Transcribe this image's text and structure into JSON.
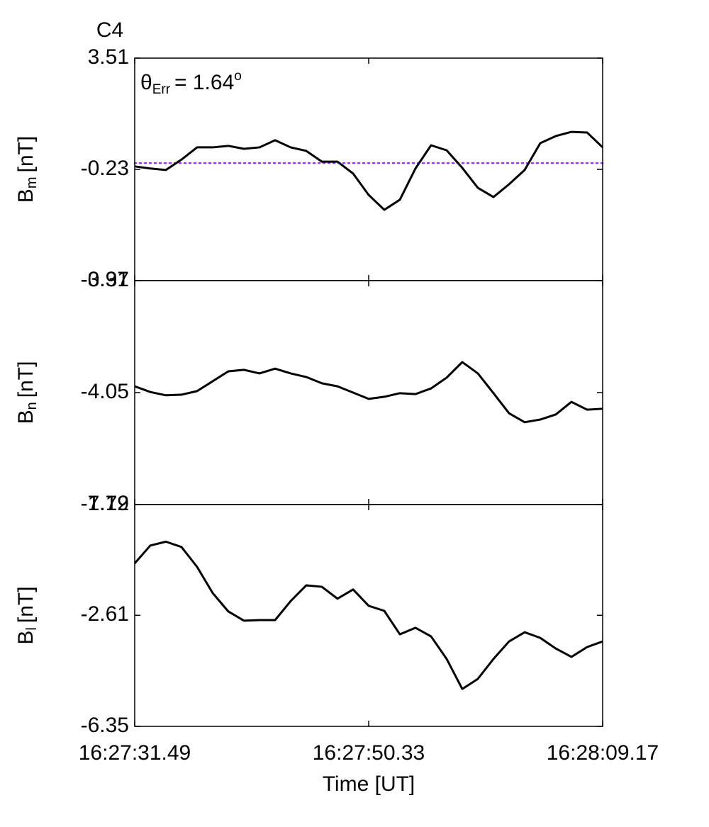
{
  "chart_data": [
    {
      "type": "line",
      "title": "C4",
      "title_color": "#ff0000",
      "annotation": {
        "text": "θ",
        "sub": "Err",
        "rest": "=  1.64",
        "sup": "o"
      },
      "ylabel": {
        "text": "B",
        "sub": "m",
        "unit": "[nT]"
      },
      "ylim": [
        -3.97,
        3.51
      ],
      "yticks": [
        -3.97,
        -0.23,
        3.51
      ],
      "reference_line": {
        "value": -0.02,
        "color": "#9933ff"
      },
      "color": "#000000",
      "values": [
        -0.13,
        -0.2,
        -0.25,
        0.1,
        0.51,
        0.51,
        0.56,
        0.46,
        0.51,
        0.75,
        0.51,
        0.39,
        0.03,
        0.03,
        -0.37,
        -1.09,
        -1.59,
        -1.25,
        -0.2,
        0.58,
        0.41,
        -0.18,
        -0.85,
        -1.16,
        -0.73,
        -0.25,
        0.65,
        0.89,
        1.03,
        1.01,
        0.51
      ]
    },
    {
      "type": "line",
      "ylabel": {
        "text": "B",
        "sub": "n",
        "unit": "[nT]"
      },
      "ylim": [
        -7.79,
        -0.31
      ],
      "yticks": [
        -7.79,
        -4.05,
        -0.31
      ],
      "color": "#000000",
      "values": [
        -3.84,
        -4.03,
        -4.14,
        -4.12,
        -4.0,
        -3.67,
        -3.34,
        -3.29,
        -3.41,
        -3.25,
        -3.41,
        -3.53,
        -3.74,
        -3.84,
        -4.05,
        -4.26,
        -4.19,
        -4.07,
        -4.1,
        -3.91,
        -3.55,
        -3.03,
        -3.41,
        -4.07,
        -4.74,
        -5.04,
        -4.95,
        -4.78,
        -4.36,
        -4.62,
        -4.59
      ]
    },
    {
      "type": "line",
      "ylabel": {
        "text": "B",
        "sub": "l",
        "unit": "[nT]"
      },
      "ylim": [
        -6.35,
        1.12
      ],
      "yticks": [
        -6.35,
        -2.61,
        1.12
      ],
      "xlabel": "Time [UT]",
      "xlim": [
        59251.49,
        59289.17
      ],
      "xticks": [
        {
          "value": 59251.49,
          "label": "16:27:31.49"
        },
        {
          "value": 59270.33,
          "label": "16:27:50.33"
        },
        {
          "value": 59289.17,
          "label": "16:28:09.17"
        }
      ],
      "x": [
        59251.49,
        59252.746,
        59254.002,
        59255.258,
        59256.514,
        59257.77,
        59259.026,
        59260.282,
        59261.538,
        59262.794,
        59264.05,
        59265.306,
        59266.562,
        59267.818,
        59269.074,
        59270.33,
        59271.586,
        59272.842,
        59274.098,
        59275.354,
        59276.61,
        59277.866,
        59279.122,
        59280.378,
        59281.634,
        59282.89,
        59284.146,
        59285.402,
        59286.658,
        59287.914,
        59289.17
      ],
      "color": "#000000",
      "values": [
        -0.86,
        -0.26,
        -0.13,
        -0.31,
        -0.98,
        -1.86,
        -2.48,
        -2.79,
        -2.77,
        -2.77,
        -2.13,
        -1.6,
        -1.65,
        -2.05,
        -1.74,
        -2.29,
        -2.46,
        -3.25,
        -3.03,
        -3.32,
        -4.08,
        -5.09,
        -4.75,
        -4.08,
        -3.49,
        -3.18,
        -3.37,
        -3.73,
        -4.01,
        -3.68,
        -3.49
      ]
    }
  ]
}
